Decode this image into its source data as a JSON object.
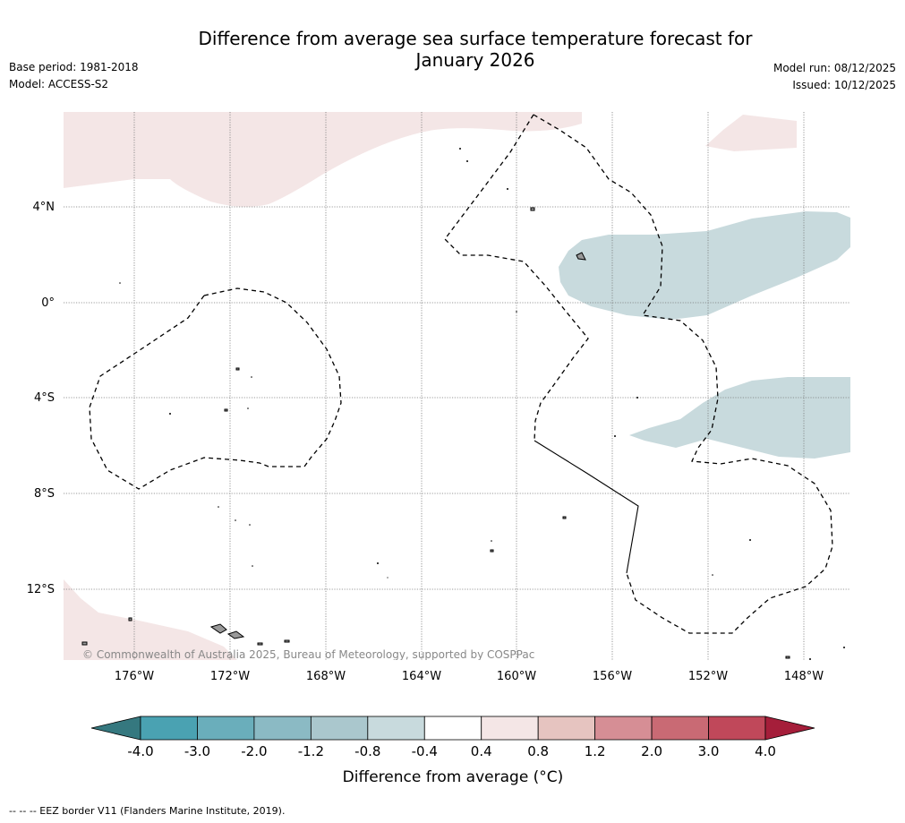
{
  "title_line1": "Difference from average sea surface temperature forecast for",
  "title_line2": "January 2026",
  "base_period": "Base period: 1981-2018",
  "model": "Model: ACCESS-S2",
  "model_run": "Model run: 08/12/2025",
  "issued": "Issued: 10/12/2025",
  "copyright": "© Commonwealth of Australia 2025, Bureau of Meteorology, supported by COSPPac",
  "lat_labels": [
    "4°N",
    "0°",
    "4°S",
    "8°S",
    "12°S"
  ],
  "lon_labels": [
    "176°W",
    "172°W",
    "168°W",
    "164°W",
    "160°W",
    "156°W",
    "152°W",
    "148°W"
  ],
  "colorbar": {
    "ticks": [
      "-4.0",
      "-3.0",
      "-2.0",
      "-1.2",
      "-0.8",
      "-0.4",
      "0.4",
      "0.8",
      "1.2",
      "2.0",
      "3.0",
      "4.0"
    ],
    "colors": [
      "#4aa2b2",
      "#6aaebb",
      "#8bbac4",
      "#aac7cd",
      "#c8dadd",
      "#ffffff",
      "#f4e6e6",
      "#e6c4c0",
      "#d68e95",
      "#c96a74",
      "#c0485a"
    ],
    "under_color": "#35787f",
    "over_color": "#a51e3a",
    "label": "Difference from average (°C)"
  },
  "legend_footer": "-- -- -- EEZ border V11 (Flanders Marine Institute, 2019).",
  "colors": {
    "warm_anomaly": "#f4e6e6",
    "cool_anomaly": "#c8dadd",
    "land": "#999999"
  }
}
